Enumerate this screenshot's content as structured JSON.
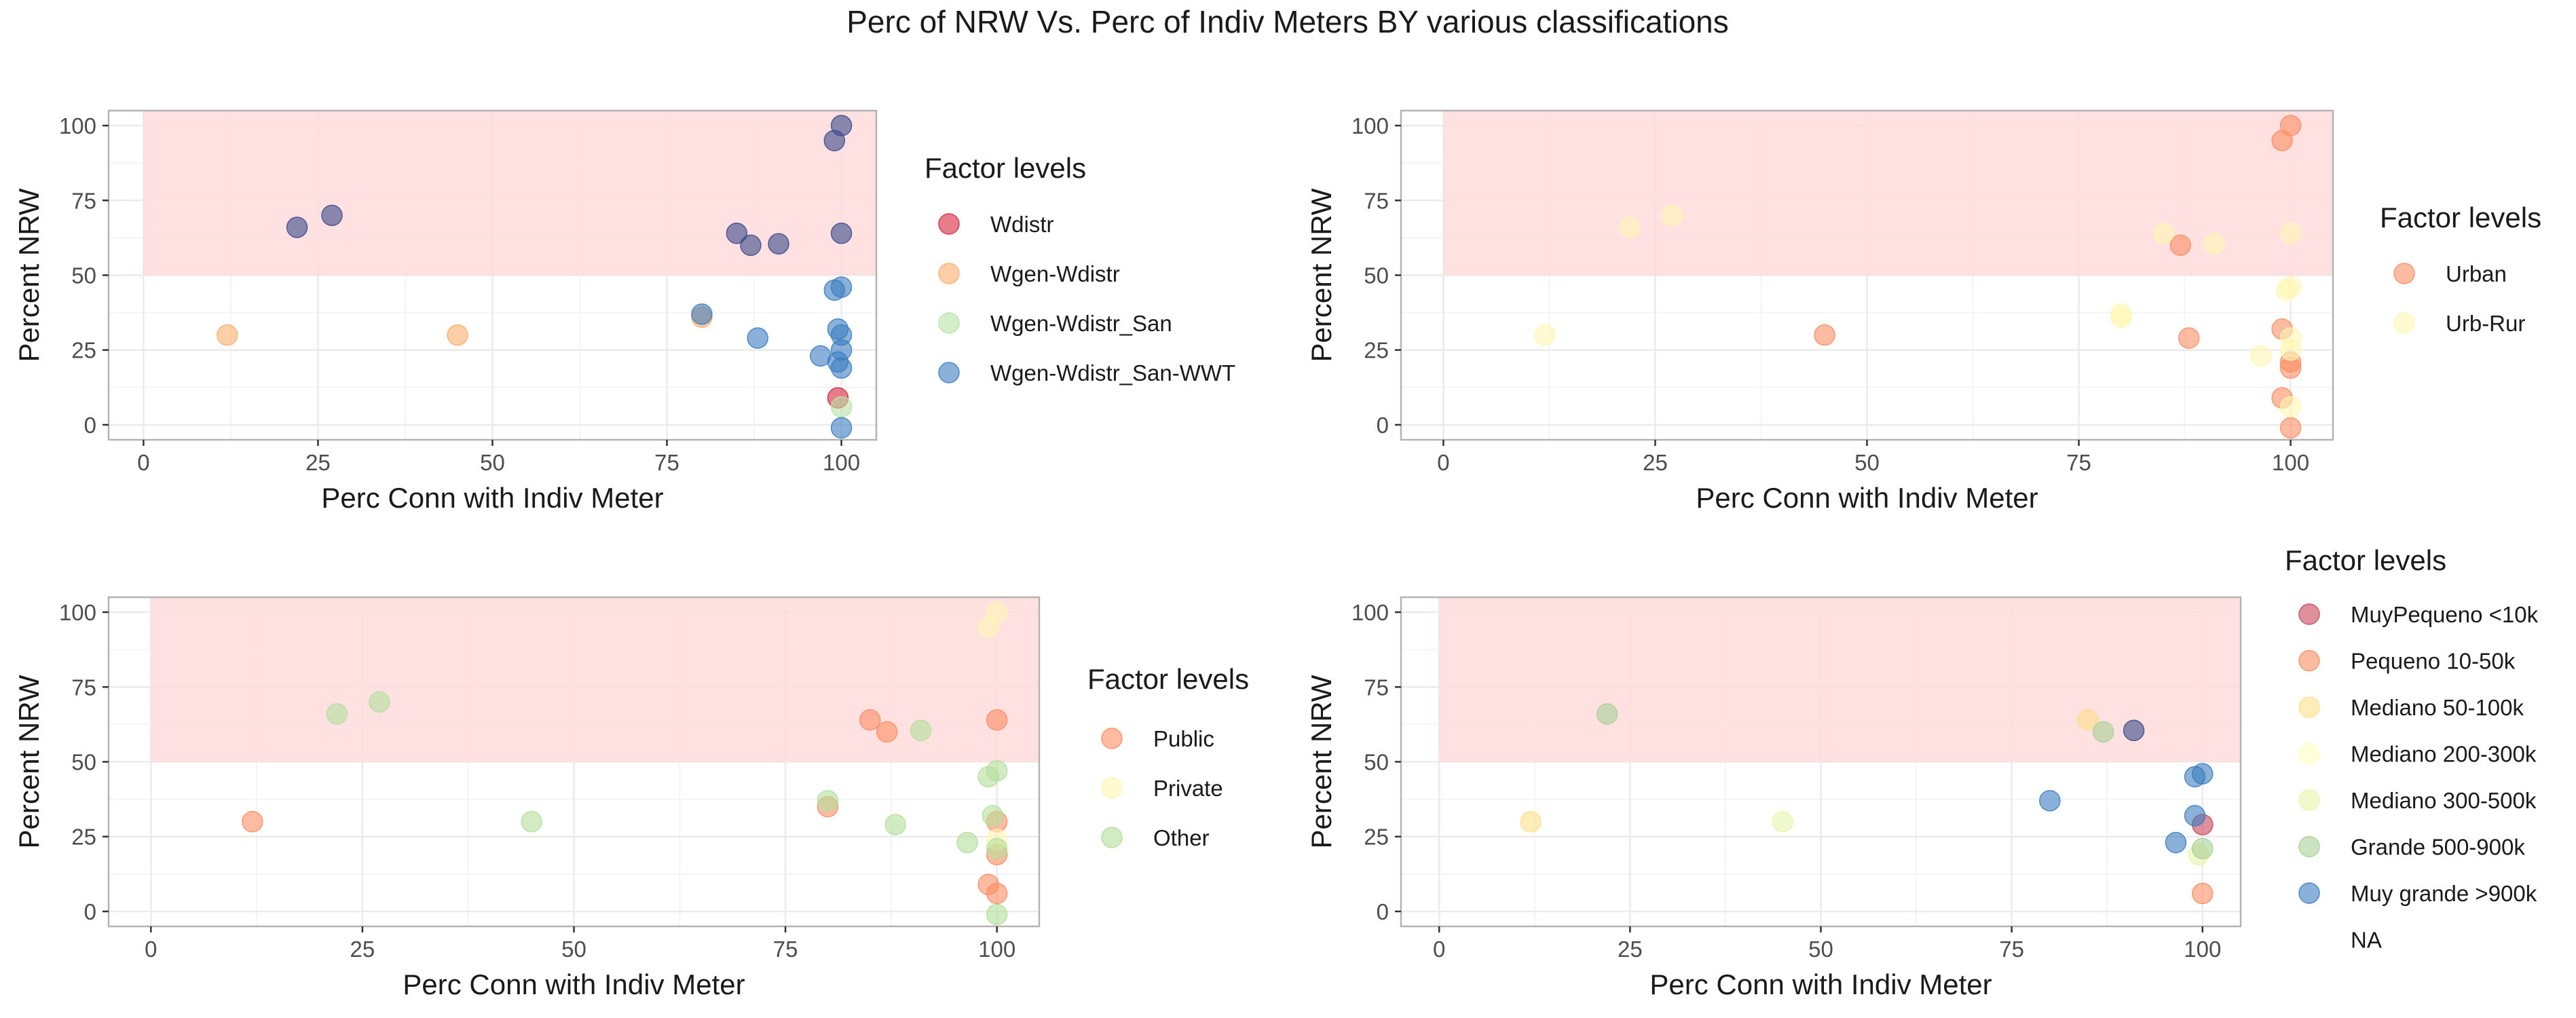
{
  "title": "Perc of NRW Vs. Perc of Indiv Meters BY various classifications",
  "chart_data": [
    {
      "type": "scatter",
      "xlabel": "Perc Conn with Indiv Meter",
      "ylabel": "Percent NRW",
      "xlim": [
        -5,
        105
      ],
      "ylim": [
        -5,
        105
      ],
      "x_ticks": [
        "0",
        "25",
        "50",
        "75",
        "100"
      ],
      "y_ticks": [
        "0",
        "25",
        "50",
        "75",
        "100"
      ],
      "grid": true,
      "shaded_region": {
        "x": [
          0,
          105
        ],
        "y": [
          50,
          105
        ],
        "color": "#ffdcdc"
      },
      "legend": {
        "title": "Factor levels",
        "placement": "right"
      },
      "series": [
        {
          "name": "Wdistr",
          "color": "#d7263d",
          "x": [
            99.5
          ],
          "y": [
            9
          ]
        },
        {
          "name": "Wgen-Wdistr",
          "color": "#fdae6b",
          "x": [
            12,
            45,
            80
          ],
          "y": [
            30,
            30,
            36
          ]
        },
        {
          "name": "Wgen-Wdistr_San",
          "color": "#b8e2a6",
          "x": [
            100
          ],
          "y": [
            6
          ]
        },
        {
          "name": "Wgen-Wdistr_San-WWT",
          "color": "#3a7dbf",
          "x": [
            80,
            88,
            97,
            99,
            99.5,
            99.5,
            100,
            100,
            100,
            100,
            100
          ],
          "y": [
            37,
            29,
            23,
            45,
            32,
            21,
            46,
            30,
            25,
            19,
            -1
          ]
        },
        {
          "name": "",
          "color": "#3b4a8c",
          "x": [
            22,
            27,
            85,
            87,
            91,
            99,
            100,
            100
          ],
          "y": [
            66,
            70,
            64,
            60,
            60.5,
            95,
            100,
            64
          ]
        }
      ]
    },
    {
      "type": "scatter",
      "xlabel": "Perc Conn with Indiv Meter",
      "ylabel": "Percent NRW",
      "xlim": [
        -5,
        105
      ],
      "ylim": [
        -5,
        105
      ],
      "x_ticks": [
        "0",
        "25",
        "50",
        "75",
        "100"
      ],
      "y_ticks": [
        "0",
        "25",
        "50",
        "75",
        "100"
      ],
      "grid": true,
      "shaded_region": {
        "x": [
          0,
          105
        ],
        "y": [
          50,
          105
        ],
        "color": "#ffdcdc"
      },
      "legend": {
        "title": "Factor levels",
        "placement": "right"
      },
      "series": [
        {
          "name": "Urban",
          "color": "#fc8d62",
          "x": [
            45,
            87,
            88,
            99,
            99,
            99,
            100,
            100,
            100,
            100
          ],
          "y": [
            30,
            60,
            29,
            95,
            32,
            9,
            100,
            21,
            19,
            -1
          ]
        },
        {
          "name": "Urb-Rur",
          "color": "#fff6b3",
          "x": [
            12,
            22,
            27,
            80,
            80,
            85,
            91,
            96.5,
            99.5,
            100,
            100,
            100,
            100,
            100
          ],
          "y": [
            30,
            66,
            70,
            37,
            36,
            64,
            60.5,
            23,
            45,
            46,
            64,
            29,
            25,
            6
          ]
        }
      ]
    },
    {
      "type": "scatter",
      "xlabel": "Perc Conn with Indiv Meter",
      "ylabel": "Percent NRW",
      "xlim": [
        -5,
        105
      ],
      "ylim": [
        -5,
        105
      ],
      "x_ticks": [
        "0",
        "25",
        "50",
        "75",
        "100"
      ],
      "y_ticks": [
        "0",
        "25",
        "50",
        "75",
        "100"
      ],
      "grid": true,
      "shaded_region": {
        "x": [
          0,
          105
        ],
        "y": [
          50,
          105
        ],
        "color": "#ffdcdc"
      },
      "legend": {
        "title": "Factor levels",
        "placement": "right"
      },
      "series": [
        {
          "name": "Public",
          "color": "#fc8d62",
          "x": [
            12,
            80,
            85,
            87,
            99,
            100,
            100,
            100,
            100
          ],
          "y": [
            30,
            35,
            64,
            60,
            9,
            64,
            30,
            19,
            6
          ]
        },
        {
          "name": "Private",
          "color": "#fff6b3",
          "x": [
            99,
            100,
            100
          ],
          "y": [
            95,
            100,
            24
          ]
        },
        {
          "name": "Other",
          "color": "#b2df9a",
          "x": [
            22,
            27,
            45,
            80,
            88,
            91,
            96.5,
            99,
            99.5,
            100,
            100,
            100
          ],
          "y": [
            66,
            70,
            30,
            37,
            29,
            60.5,
            23,
            45,
            32,
            47,
            21,
            -1
          ]
        }
      ]
    },
    {
      "type": "scatter",
      "xlabel": "Perc Conn with Indiv Meter",
      "ylabel": "Percent NRW",
      "xlim": [
        -5,
        105
      ],
      "ylim": [
        -5,
        105
      ],
      "x_ticks": [
        "0",
        "25",
        "50",
        "75",
        "100"
      ],
      "y_ticks": [
        "0",
        "25",
        "50",
        "75",
        "100"
      ],
      "grid": true,
      "shaded_region": {
        "x": [
          0,
          105
        ],
        "y": [
          50,
          105
        ],
        "color": "#ffdcdc"
      },
      "legend": {
        "title": "Factor levels",
        "placement": "right"
      },
      "series": [
        {
          "name": "MuyPequeno <10k",
          "color": "#c8465a",
          "x": [
            100
          ],
          "y": [
            29
          ]
        },
        {
          "name": "Pequeno 10-50k",
          "color": "#fc8d62",
          "x": [
            100
          ],
          "y": [
            6
          ]
        },
        {
          "name": "Mediano 50-100k",
          "color": "#fee08b",
          "x": [
            12,
            85
          ],
          "y": [
            30,
            64
          ]
        },
        {
          "name": "Mediano 200-300k",
          "color": "#ffffbf",
          "x": [],
          "y": []
        },
        {
          "name": "Mediano 300-500k",
          "color": "#e6f5a8",
          "x": [
            45,
            99.5
          ],
          "y": [
            30,
            19
          ]
        },
        {
          "name": "Grande 500-900k",
          "color": "#a6d096",
          "x": [
            22,
            87,
            100
          ],
          "y": [
            66,
            60,
            21
          ]
        },
        {
          "name": "Muy grande >900k",
          "color": "#3a7dbf",
          "x": [
            80,
            96.5,
            99,
            99,
            100
          ],
          "y": [
            37,
            23,
            45,
            32,
            46
          ]
        },
        {
          "name": "NA",
          "color": "#ffffff",
          "x": [],
          "y": []
        },
        {
          "name": "",
          "color": "#3b4a8c",
          "x": [
            91
          ],
          "y": [
            60.5
          ]
        }
      ]
    }
  ]
}
